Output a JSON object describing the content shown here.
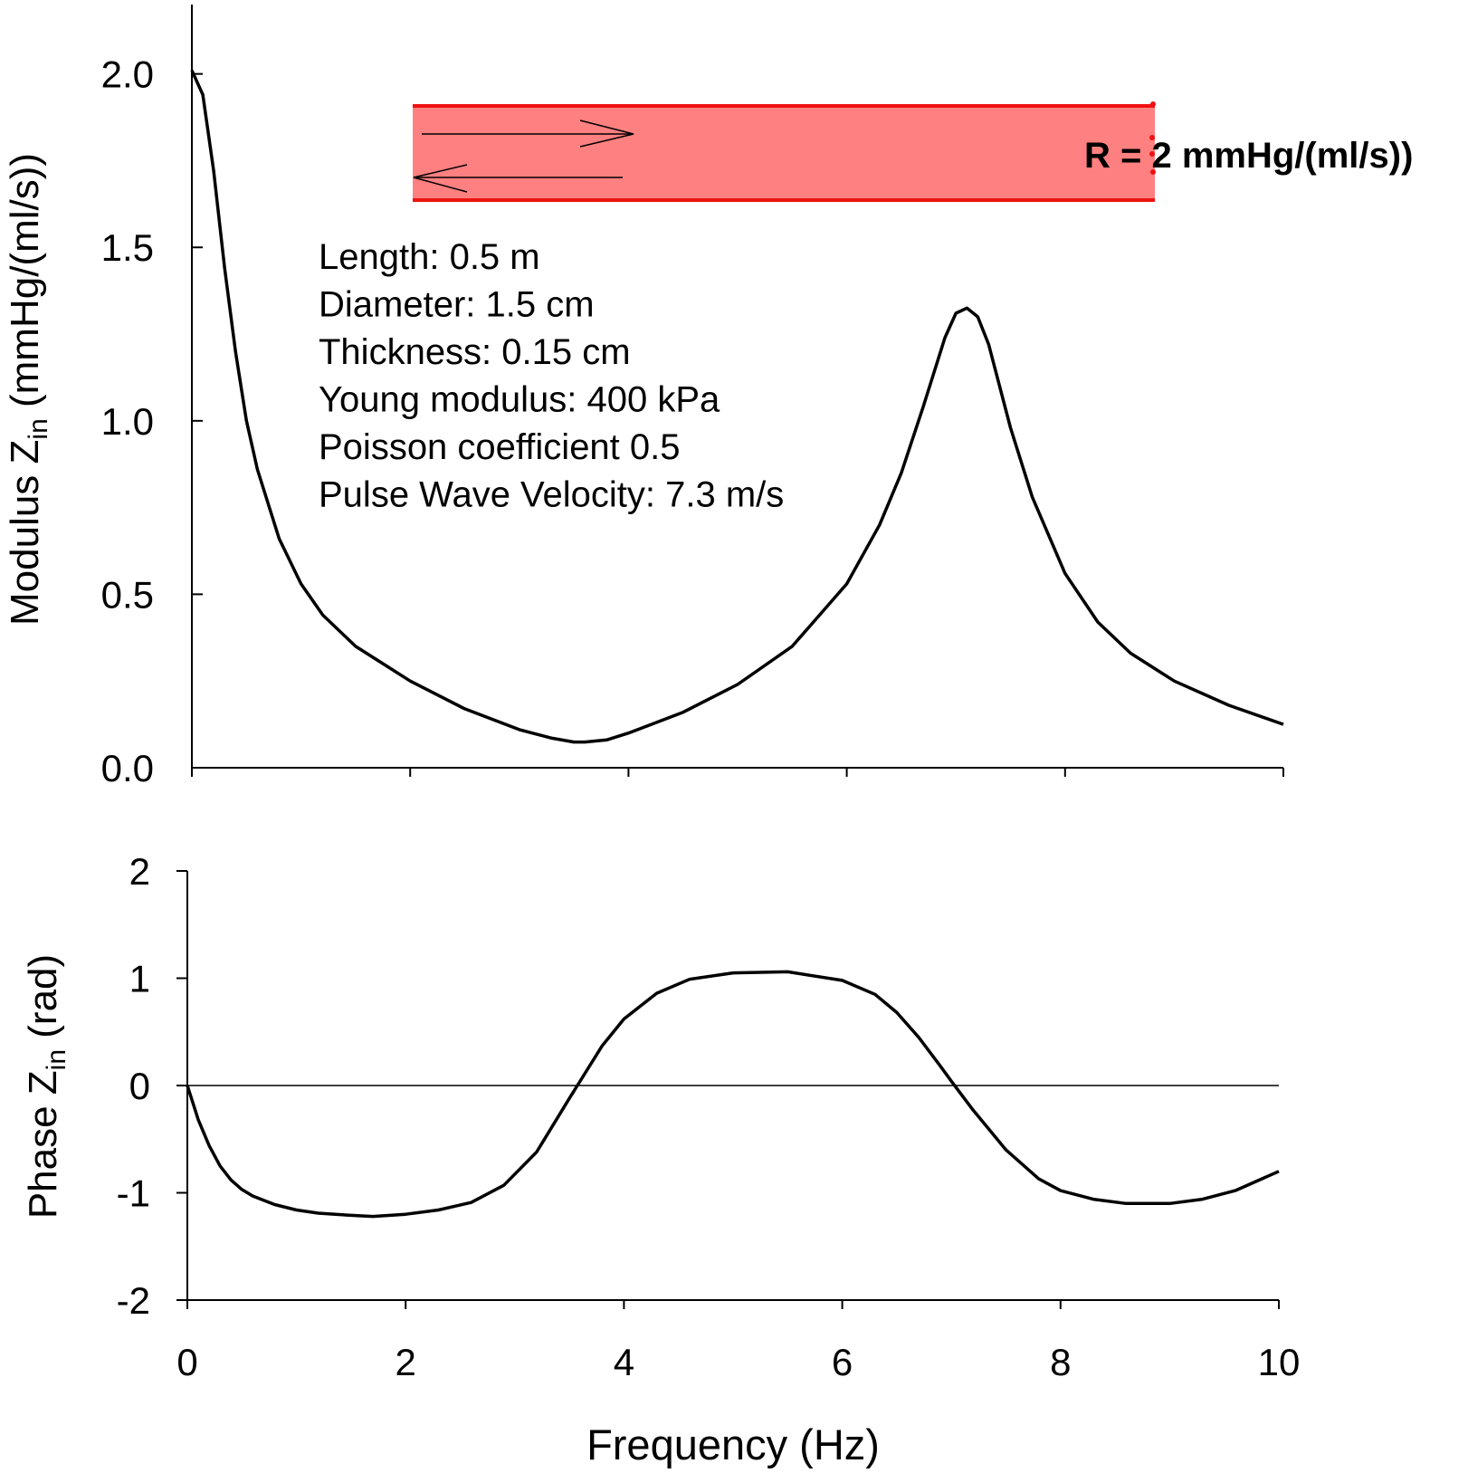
{
  "chart_data": [
    {
      "type": "line",
      "ylabel_main": "Modulus Z",
      "ylabel_sub": "in",
      "ylabel_unit": " (mmHg/(ml/s))",
      "xlim": [
        0,
        10
      ],
      "ylim": [
        0,
        2.2
      ],
      "x_ticks": [
        0,
        2,
        4,
        6,
        8,
        10
      ],
      "y_ticks": [
        "0.0",
        "0.5",
        "1.0",
        "1.5",
        "2.0"
      ],
      "y_tick_values": [
        0,
        0.5,
        1.0,
        1.5,
        2.0
      ],
      "series": [
        {
          "x": [
            0,
            0.1,
            0.2,
            0.3,
            0.4,
            0.5,
            0.6,
            0.8,
            1.0,
            1.2,
            1.5,
            1.8,
            2.0,
            2.5,
            3.0,
            3.3,
            3.5,
            3.6,
            3.8,
            4.0,
            4.5,
            5.0,
            5.5,
            6.0,
            6.3,
            6.5,
            6.7,
            6.9,
            7.0,
            7.1,
            7.2,
            7.3,
            7.5,
            7.7,
            8.0,
            8.3,
            8.6,
            9.0,
            9.5,
            10.0
          ],
          "y": [
            2.01,
            1.94,
            1.72,
            1.44,
            1.2,
            1.0,
            0.86,
            0.66,
            0.53,
            0.44,
            0.35,
            0.29,
            0.25,
            0.17,
            0.11,
            0.085,
            0.074,
            0.074,
            0.08,
            0.1,
            0.16,
            0.24,
            0.35,
            0.53,
            0.7,
            0.85,
            1.04,
            1.24,
            1.31,
            1.325,
            1.3,
            1.22,
            0.98,
            0.78,
            0.56,
            0.42,
            0.33,
            0.25,
            0.18,
            0.125
          ]
        }
      ]
    },
    {
      "type": "line",
      "ylabel_main": "Phase Z",
      "ylabel_sub": "in",
      "ylabel_unit": " (rad)",
      "xlabel": "Frequency (Hz)",
      "xlim": [
        0,
        10
      ],
      "ylim": [
        -2,
        2
      ],
      "x_ticks": [
        "0",
        "2",
        "4",
        "6",
        "8",
        "10"
      ],
      "x_tick_values": [
        0,
        2,
        4,
        6,
        8,
        10
      ],
      "y_ticks": [
        "-2",
        "-1",
        "0",
        "1",
        "2"
      ],
      "y_tick_values": [
        -2,
        -1,
        0,
        1,
        2
      ],
      "series": [
        {
          "x": [
            0,
            0.1,
            0.2,
            0.3,
            0.4,
            0.5,
            0.6,
            0.8,
            1.0,
            1.2,
            1.5,
            1.7,
            2.0,
            2.3,
            2.6,
            2.9,
            3.2,
            3.5,
            3.8,
            4.0,
            4.3,
            4.6,
            5.0,
            5.5,
            6.0,
            6.3,
            6.5,
            6.7,
            6.9,
            7.0,
            7.2,
            7.5,
            7.8,
            8.0,
            8.3,
            8.6,
            9.0,
            9.3,
            9.6,
            10.0
          ],
          "y": [
            0,
            -0.32,
            -0.56,
            -0.75,
            -0.88,
            -0.97,
            -1.03,
            -1.11,
            -1.16,
            -1.19,
            -1.21,
            -1.22,
            -1.2,
            -1.16,
            -1.09,
            -0.93,
            -0.62,
            -0.12,
            0.37,
            0.62,
            0.86,
            0.99,
            1.05,
            1.06,
            0.98,
            0.85,
            0.68,
            0.45,
            0.18,
            0.04,
            -0.23,
            -0.6,
            -0.87,
            -0.98,
            -1.06,
            -1.1,
            -1.1,
            -1.06,
            -0.98,
            -0.8
          ]
        }
      ]
    }
  ],
  "annotations": {
    "r_label": "R = 2 mmHg/(ml/s))",
    "parameters": [
      "Length: 0.5 m",
      "Diameter: 1.5 cm",
      "Thickness: 0.15 cm",
      "Young modulus: 400 kPa",
      "Poisson coefficient 0.5",
      "Pulse Wave Velocity: 7.3 m/s"
    ],
    "tube_fill_color": "#ff8080",
    "tube_edge_color": "#ee1111"
  }
}
